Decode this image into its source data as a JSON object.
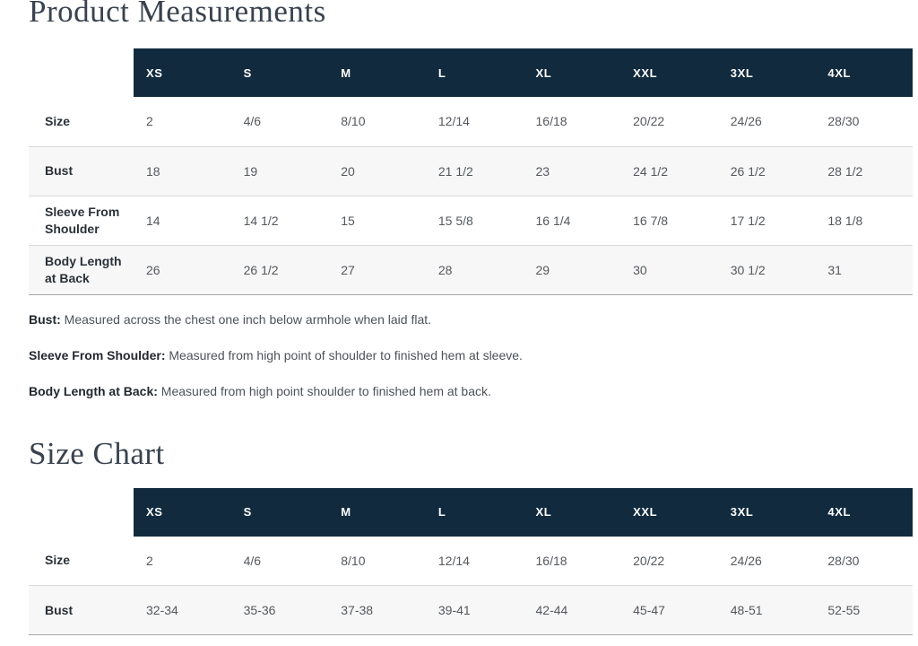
{
  "colors": {
    "table_header_bg": "#112a3d",
    "table_header_text": "#ffffff",
    "row_alt_bg": "#f7f7f7",
    "row_border": "#d9d9d9",
    "table_bottom_border": "#a6a6a6",
    "title_text": "#39424e",
    "label_text": "#2a3038",
    "value_text": "#54585d"
  },
  "product_measurements": {
    "title": "Product Measurements",
    "table": {
      "columns": [
        "XS",
        "S",
        "M",
        "L",
        "XL",
        "XXL",
        "3XL",
        "4XL"
      ],
      "rows": [
        {
          "label": "Size",
          "values": [
            "2",
            "4/6",
            "8/10",
            "12/14",
            "16/18",
            "20/22",
            "24/26",
            "28/30"
          ]
        },
        {
          "label": "Bust",
          "values": [
            "18",
            "19",
            "20",
            "21 1/2",
            "23",
            "24 1/2",
            "26 1/2",
            "28 1/2"
          ]
        },
        {
          "label": "Sleeve From Shoulder",
          "values": [
            "14",
            "14 1/2",
            "15",
            "15 5/8",
            "16 1/4",
            "16 7/8",
            "17 1/2",
            "18 1/8"
          ]
        },
        {
          "label": "Body Length at Back",
          "values": [
            "26",
            "26 1/2",
            "27",
            "28",
            "29",
            "30",
            "30 1/2",
            "31"
          ]
        }
      ]
    },
    "notes": [
      {
        "label": "Bust:",
        "text": "Measured across the chest one inch below armhole when laid flat."
      },
      {
        "label": "Sleeve From Shoulder:",
        "text": "Measured from high point of shoulder to finished hem at sleeve."
      },
      {
        "label": "Body Length at Back:",
        "text": "Measured from high point shoulder to finished hem at back."
      }
    ]
  },
  "size_chart": {
    "title": "Size Chart",
    "table": {
      "columns": [
        "XS",
        "S",
        "M",
        "L",
        "XL",
        "XXL",
        "3XL",
        "4XL"
      ],
      "rows": [
        {
          "label": "Size",
          "values": [
            "2",
            "4/6",
            "8/10",
            "12/14",
            "16/18",
            "20/22",
            "24/26",
            "28/30"
          ]
        },
        {
          "label": "Bust",
          "values": [
            "32-34",
            "35-36",
            "37-38",
            "39-41",
            "42-44",
            "45-47",
            "48-51",
            "52-55"
          ]
        }
      ]
    }
  }
}
